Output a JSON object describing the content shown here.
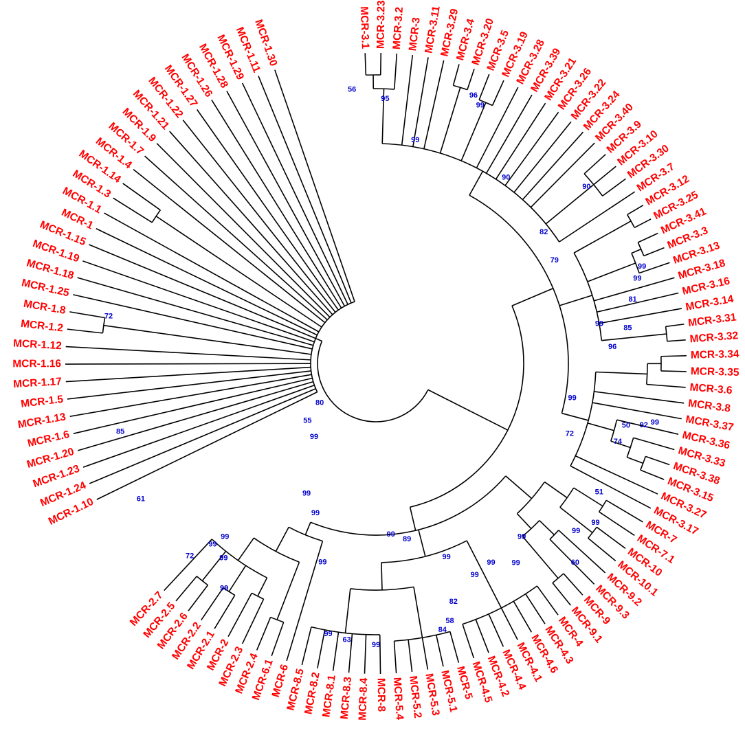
{
  "colors": {
    "leaf_label": "#ff0000",
    "bootstrap": "#0000cc",
    "branch": "#000000"
  },
  "leaves": [
    "MCR-1.10",
    "MCR-1.24",
    "MCR-1.23",
    "MCR-1.20",
    "MCR-1.6",
    "MCR-1.13",
    "MCR-1.5",
    "MCR-1.17",
    "MCR-1.16",
    "MCR-1.12",
    "MCR-1.2",
    "MCR-1.8",
    "MCR-1.25",
    "MCR-1.18",
    "MCR-1.19",
    "MCR-1.15",
    "MCR-1",
    "MCR-1.1",
    "MCR-1.3",
    "MCR-1.14",
    "MCR-1.4",
    "MCR-1.7",
    "MCR-1.9",
    "MCR-1.21",
    "MCR-1.22",
    "MCR-1.27",
    "MCR-1.26",
    "MCR-1.28",
    "MCR-1.29",
    "MCR-1.11",
    "MCR-1.30",
    "MCR-3.1",
    "MCR-3.23",
    "MCR-3.2",
    "MCR-3",
    "MCR-3.11",
    "MCR-3.29",
    "MCR-3.4",
    "MCR-3.20",
    "MCR-3.5",
    "MCR-3.19",
    "MCR-3.28",
    "MCR-3.39",
    "MCR-3.21",
    "MCR-3.26",
    "MCR-3.22",
    "MCR-3.24",
    "MCR-3.40",
    "MCR-3.9",
    "MCR-3.10",
    "MCR-3.30",
    "MCR-3.7",
    "MCR-3.12",
    "MCR-3.25",
    "MCR-3.41",
    "MCR-3.3",
    "MCR-3.13",
    "MCR-3.18",
    "MCR-3.16",
    "MCR-3.14",
    "MCR-3.31",
    "MCR-3.32",
    "MCR-3.34",
    "MCR-3.35",
    "MCR-3.6",
    "MCR-3.8",
    "MCR-3.37",
    "MCR-3.36",
    "MCR-3.33",
    "MCR-3.38",
    "MCR-3.15",
    "MCR-3.27",
    "MCR-3.17",
    "MCR-7",
    "MCR-7.1",
    "MCR-10",
    "MCR-10.1",
    "MCR-9.2",
    "MCR-9.3",
    "MCR-9",
    "MCR-9.1",
    "MCR-4",
    "MCR-4.3",
    "MCR-4.6",
    "MCR-4.1",
    "MCR-4.4",
    "MCR-4.2",
    "MCR-4.5",
    "MCR-5",
    "MCR-5.1",
    "MCR-5.3",
    "MCR-5.2",
    "MCR-5.4",
    "MCR-8",
    "MCR-8.4",
    "MCR-8.3",
    "MCR-8.1",
    "MCR-8.2",
    "MCR-8.5",
    "MCR-6",
    "MCR-6.1",
    "MCR-2.4",
    "MCR-2.3",
    "MCR-2",
    "MCR-2.1",
    "MCR-2.2",
    "MCR-2.6",
    "MCR-2.5",
    "MCR-2.7"
  ],
  "bootstrap_values": [
    "72",
    "85",
    "61",
    "80",
    "55",
    "99",
    "56",
    "95",
    "96",
    "99",
    "99",
    "90",
    "90",
    "82",
    "79",
    "99",
    "99",
    "99",
    "81",
    "85",
    "96",
    "99",
    "99",
    "92",
    "50",
    "74",
    "72",
    "51",
    "99",
    "99",
    "60",
    "99",
    "99",
    "99",
    "99",
    "99",
    "82",
    "58",
    "84",
    "89",
    "99",
    "99",
    "63",
    "99",
    "99",
    "99",
    "99",
    "99",
    "99",
    "99",
    "99",
    "72"
  ]
}
